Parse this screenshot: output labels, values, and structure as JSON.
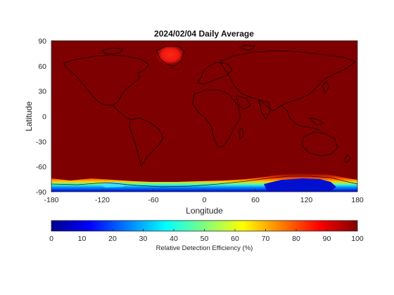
{
  "title": "2024/02/04 Daily Average",
  "x_axis": {
    "label": "Longitude",
    "ticks": [
      "-180",
      "-120",
      "-60",
      "0",
      "60",
      "120",
      "180"
    ],
    "range": [
      -180,
      180
    ]
  },
  "y_axis": {
    "label": "Latitude",
    "ticks": [
      "90",
      "60",
      "30",
      "0",
      "-30",
      "-60",
      "-90"
    ],
    "range": [
      -90,
      90
    ]
  },
  "colorbar": {
    "label": "Relative Detection Efficiency (%)",
    "ticks": [
      "0",
      "10",
      "20",
      "30",
      "40",
      "50",
      "60",
      "70",
      "80",
      "90",
      "100"
    ],
    "range": [
      0,
      100
    ],
    "colormap": "jet"
  },
  "colors": {
    "background_value": "#7f0000",
    "greenland_high": "#e31a1c"
  },
  "chart_data": {
    "type": "heatmap",
    "title": "2024/02/04 Daily Average",
    "xlabel": "Longitude",
    "ylabel": "Latitude",
    "xlim": [
      -180,
      180
    ],
    "ylim": [
      -90,
      90
    ],
    "value_label": "Relative Detection Efficiency (%)",
    "value_range": [
      0,
      100
    ],
    "typical_value": 100,
    "features": [
      {
        "region": "Greenland",
        "approx_value": 85
      },
      {
        "region": "Antarctic coast",
        "approx_value_range": [
          0,
          60
        ]
      }
    ]
  }
}
